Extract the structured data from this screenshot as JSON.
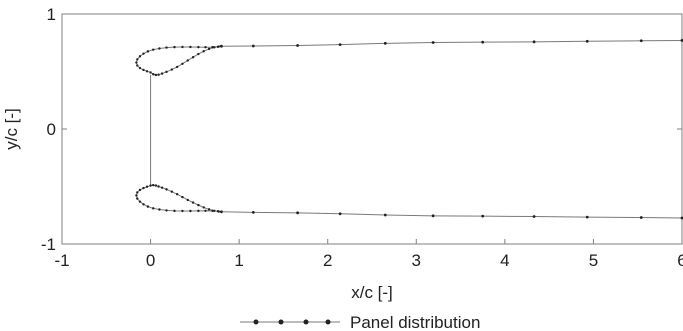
{
  "chart_data": {
    "type": "scatter",
    "xlabel": "x/c [-]",
    "ylabel": "y/c [-]",
    "xlim": [
      -1,
      6
    ],
    "ylim": [
      -1,
      1
    ],
    "xticks": [
      -1,
      0,
      1,
      2,
      3,
      4,
      5,
      6
    ],
    "xtick_labels": [
      "-1",
      "0",
      "1",
      "2",
      "3",
      "4",
      "5",
      "6"
    ],
    "yticks": [
      -1,
      0,
      1
    ],
    "ytick_labels": [
      "-1",
      "0",
      "1"
    ],
    "grid": false,
    "legend_position": "bottom-center",
    "series": [
      {
        "name": "Panel distribution",
        "color": "#222222",
        "line_color": "#7a7a7a",
        "marker": "circle",
        "parts": [
          {
            "label": "upper-airfoil",
            "closed": true,
            "points": [
              [
                0.8,
                0.72
              ],
              [
                0.76,
                0.715
              ],
              [
                0.7,
                0.712
              ],
              [
                0.62,
                0.711
              ],
              [
                0.54,
                0.712
              ],
              [
                0.45,
                0.713
              ],
              [
                0.36,
                0.713
              ],
              [
                0.27,
                0.712
              ],
              [
                0.18,
                0.708
              ],
              [
                0.1,
                0.7
              ],
              [
                0.03,
                0.69
              ],
              [
                -0.03,
                0.675
              ],
              [
                -0.08,
                0.655
              ],
              [
                -0.12,
                0.632
              ],
              [
                -0.15,
                0.605
              ],
              [
                -0.16,
                0.578
              ],
              [
                -0.15,
                0.552
              ],
              [
                -0.12,
                0.53
              ],
              [
                -0.08,
                0.514
              ],
              [
                -0.04,
                0.502
              ],
              [
                0.0,
                0.492
              ],
              [
                0.03,
                0.476
              ],
              [
                0.06,
                0.47
              ],
              [
                0.09,
                0.472
              ],
              [
                0.13,
                0.482
              ],
              [
                0.18,
                0.497
              ],
              [
                0.24,
                0.517
              ],
              [
                0.3,
                0.54
              ],
              [
                0.36,
                0.567
              ],
              [
                0.42,
                0.596
              ],
              [
                0.48,
                0.624
              ],
              [
                0.54,
                0.652
              ],
              [
                0.6,
                0.676
              ],
              [
                0.66,
                0.696
              ],
              [
                0.72,
                0.71
              ],
              [
                0.77,
                0.717
              ]
            ]
          },
          {
            "label": "lower-airfoil",
            "closed": true,
            "points": [
              [
                0.8,
                -0.72
              ],
              [
                0.76,
                -0.715
              ],
              [
                0.7,
                -0.712
              ],
              [
                0.62,
                -0.711
              ],
              [
                0.54,
                -0.712
              ],
              [
                0.45,
                -0.713
              ],
              [
                0.36,
                -0.713
              ],
              [
                0.27,
                -0.712
              ],
              [
                0.18,
                -0.708
              ],
              [
                0.1,
                -0.7
              ],
              [
                0.03,
                -0.69
              ],
              [
                -0.03,
                -0.675
              ],
              [
                -0.08,
                -0.655
              ],
              [
                -0.12,
                -0.632
              ],
              [
                -0.15,
                -0.605
              ],
              [
                -0.16,
                -0.578
              ],
              [
                -0.15,
                -0.552
              ],
              [
                -0.12,
                -0.53
              ],
              [
                -0.08,
                -0.514
              ],
              [
                -0.04,
                -0.502
              ],
              [
                0.0,
                -0.492
              ],
              [
                0.03,
                -0.488
              ],
              [
                0.06,
                -0.492
              ],
              [
                0.09,
                -0.5
              ],
              [
                0.13,
                -0.51
              ],
              [
                0.18,
                -0.525
              ],
              [
                0.24,
                -0.545
              ],
              [
                0.3,
                -0.567
              ],
              [
                0.36,
                -0.592
              ],
              [
                0.42,
                -0.617
              ],
              [
                0.48,
                -0.64
              ],
              [
                0.54,
                -0.662
              ],
              [
                0.6,
                -0.682
              ],
              [
                0.66,
                -0.699
              ],
              [
                0.72,
                -0.711
              ],
              [
                0.77,
                -0.718
              ]
            ]
          },
          {
            "label": "upper-wake",
            "closed": false,
            "points": [
              [
                0.8,
                0.72
              ],
              [
                1.16,
                0.722
              ],
              [
                1.66,
                0.726
              ],
              [
                2.14,
                0.734
              ],
              [
                2.65,
                0.745
              ],
              [
                3.19,
                0.752
              ],
              [
                3.75,
                0.755
              ],
              [
                4.33,
                0.758
              ],
              [
                4.93,
                0.763
              ],
              [
                5.54,
                0.767
              ],
              [
                6.0,
                0.77
              ]
            ]
          },
          {
            "label": "lower-wake",
            "closed": false,
            "points": [
              [
                0.8,
                -0.72
              ],
              [
                1.16,
                -0.725
              ],
              [
                1.66,
                -0.729
              ],
              [
                2.14,
                -0.737
              ],
              [
                2.65,
                -0.748
              ],
              [
                3.19,
                -0.755
              ],
              [
                3.75,
                -0.758
              ],
              [
                4.33,
                -0.761
              ],
              [
                4.93,
                -0.766
              ],
              [
                5.54,
                -0.77
              ],
              [
                6.0,
                -0.774
              ]
            ]
          }
        ]
      }
    ],
    "annotations_lines": [
      {
        "label": "leading-edge-connector",
        "points": [
          [
            0.0,
            0.47
          ],
          [
            0.0,
            -0.49
          ]
        ]
      }
    ]
  },
  "legend": {
    "label": "Panel distribution"
  }
}
